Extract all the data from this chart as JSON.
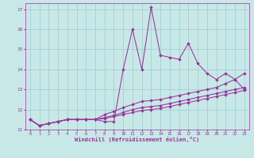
{
  "xlabel": "Windchill (Refroidissement éolien,°C)",
  "bg_color": "#c8e8e8",
  "line_color": "#993399",
  "grid_color": "#99cccc",
  "xlim_min": -0.5,
  "xlim_max": 23.5,
  "ylim_min": 11.0,
  "ylim_max": 17.3,
  "yticks": [
    11,
    12,
    13,
    14,
    15,
    16,
    17
  ],
  "xticks": [
    0,
    1,
    2,
    3,
    4,
    5,
    6,
    7,
    8,
    9,
    10,
    11,
    12,
    13,
    14,
    15,
    16,
    17,
    18,
    19,
    20,
    21,
    22,
    23
  ],
  "line1_jagged": [
    11.5,
    11.2,
    11.3,
    11.4,
    11.5,
    11.5,
    11.5,
    11.5,
    11.4,
    11.4,
    14.0,
    16.0,
    14.0,
    17.1,
    14.7,
    14.6,
    14.5,
    15.3,
    14.3,
    13.8,
    13.5,
    13.8,
    13.5,
    13.0
  ],
  "line2_smooth": [
    11.5,
    11.2,
    11.3,
    11.4,
    11.5,
    11.5,
    11.5,
    11.5,
    11.75,
    11.9,
    12.1,
    12.25,
    12.4,
    12.45,
    12.5,
    12.6,
    12.7,
    12.8,
    12.9,
    13.0,
    13.1,
    13.3,
    13.5,
    13.8
  ],
  "line3_smooth": [
    11.5,
    11.2,
    11.3,
    11.4,
    11.5,
    11.5,
    11.5,
    11.5,
    11.6,
    11.7,
    11.85,
    12.0,
    12.1,
    12.15,
    12.2,
    12.3,
    12.4,
    12.5,
    12.6,
    12.7,
    12.8,
    12.9,
    13.0,
    13.1
  ],
  "line4_smooth": [
    11.5,
    11.2,
    11.3,
    11.4,
    11.5,
    11.5,
    11.5,
    11.5,
    11.55,
    11.65,
    11.75,
    11.85,
    11.95,
    12.0,
    12.05,
    12.15,
    12.25,
    12.35,
    12.45,
    12.55,
    12.65,
    12.75,
    12.85,
    12.95
  ]
}
